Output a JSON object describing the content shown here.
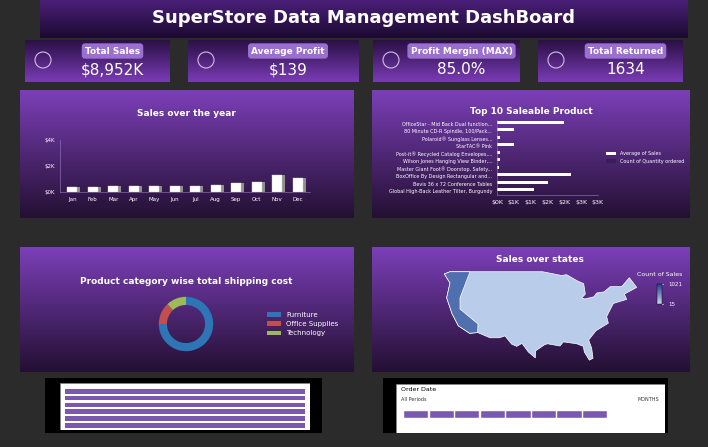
{
  "title": "SuperStore Data Management DashBoard",
  "kpis": [
    {
      "label": "Total Sales",
      "value": "$8,952K"
    },
    {
      "label": "Average Profit",
      "value": "$139"
    },
    {
      "label": "Profit Mergin (MAX)",
      "value": "85.0%"
    },
    {
      "label": "Total Returned",
      "value": "1634"
    }
  ],
  "chart_data": [
    {
      "type": "bar",
      "title": "Sales over the year",
      "categories": [
        "Jan",
        "Feb",
        "Mar",
        "Apr",
        "May",
        "Jun",
        "Jul",
        "Aug",
        "Sep",
        "Oct",
        "Nov",
        "Dec"
      ],
      "values": [
        0.4,
        0.4,
        0.45,
        0.45,
        0.5,
        0.5,
        0.5,
        0.55,
        0.7,
        0.8,
        1.3,
        1.1
      ],
      "color": "#ffffff",
      "ylim": [
        0,
        4
      ],
      "yticks": [
        {
          "value": 0,
          "label": "$0K"
        },
        {
          "value": 2,
          "label": "$2K"
        },
        {
          "value": 4,
          "label": "$4K"
        }
      ]
    },
    {
      "type": "bar",
      "orientation": "horizontal",
      "title": "Top 10 Saleable Product",
      "categories": [
        "OfficeStar - Mid Back Dual function...",
        "80 Minute CD-R Spindle, 100/Pack...",
        "Polaroid® Sunglass Lenses...",
        "StarTAC® Pink",
        "Post-it® Recycled Catalog Envelopes,...",
        "Wilson Jones Hanging View Binder,...",
        "Master Giant Foot® Doorstop, Safety...",
        "BoxOffice By Design Rectangular and...",
        "Bevis 36 x 72 Conference Tables",
        "Global High-Back Leather Tilter, Burgundy"
      ],
      "series": [
        {
          "name": "Average of Sales",
          "color": "#ffffff",
          "values": [
            2.0,
            0.5,
            0.1,
            0.5,
            0.1,
            0.1,
            0.05,
            2.2,
            1.5,
            1.1
          ]
        },
        {
          "name": "Count of Quantity ordered",
          "color": "#3b1d5e",
          "values": [
            0.02,
            0.03,
            0.02,
            0.02,
            0.01,
            0.01,
            0.01,
            0.01,
            0.01,
            0.01
          ]
        }
      ],
      "xlim": [
        0,
        3
      ],
      "xticks": [
        {
          "value": 0,
          "label": "$0K"
        },
        {
          "value": 0.5,
          "label": "$1K"
        },
        {
          "value": 1,
          "label": "$1K"
        },
        {
          "value": 1.5,
          "label": "$2K"
        },
        {
          "value": 2,
          "label": "$2K"
        },
        {
          "value": 2.5,
          "label": "$3K"
        },
        {
          "value": 3,
          "label": "$3K"
        }
      ],
      "legend": "right"
    },
    {
      "type": "pie",
      "title": "Product category wise total shipping cost",
      "categories": [
        "Furniture",
        "Office Supplies",
        "Technology"
      ],
      "values": [
        75,
        13,
        12
      ],
      "colors": [
        "#2e75b6",
        "#c0504d",
        "#9bbb59"
      ],
      "legend": "right"
    },
    {
      "type": "map",
      "title": "Sales over states",
      "colorbar_title": "Count of Sales",
      "colorbar_range": [
        15,
        1021
      ],
      "colorbar_ticks": [
        15,
        1021
      ]
    }
  ],
  "slicers": {
    "order_date": {
      "title": "Order Date",
      "selection": "All Periods",
      "level": "MONTHS"
    }
  }
}
